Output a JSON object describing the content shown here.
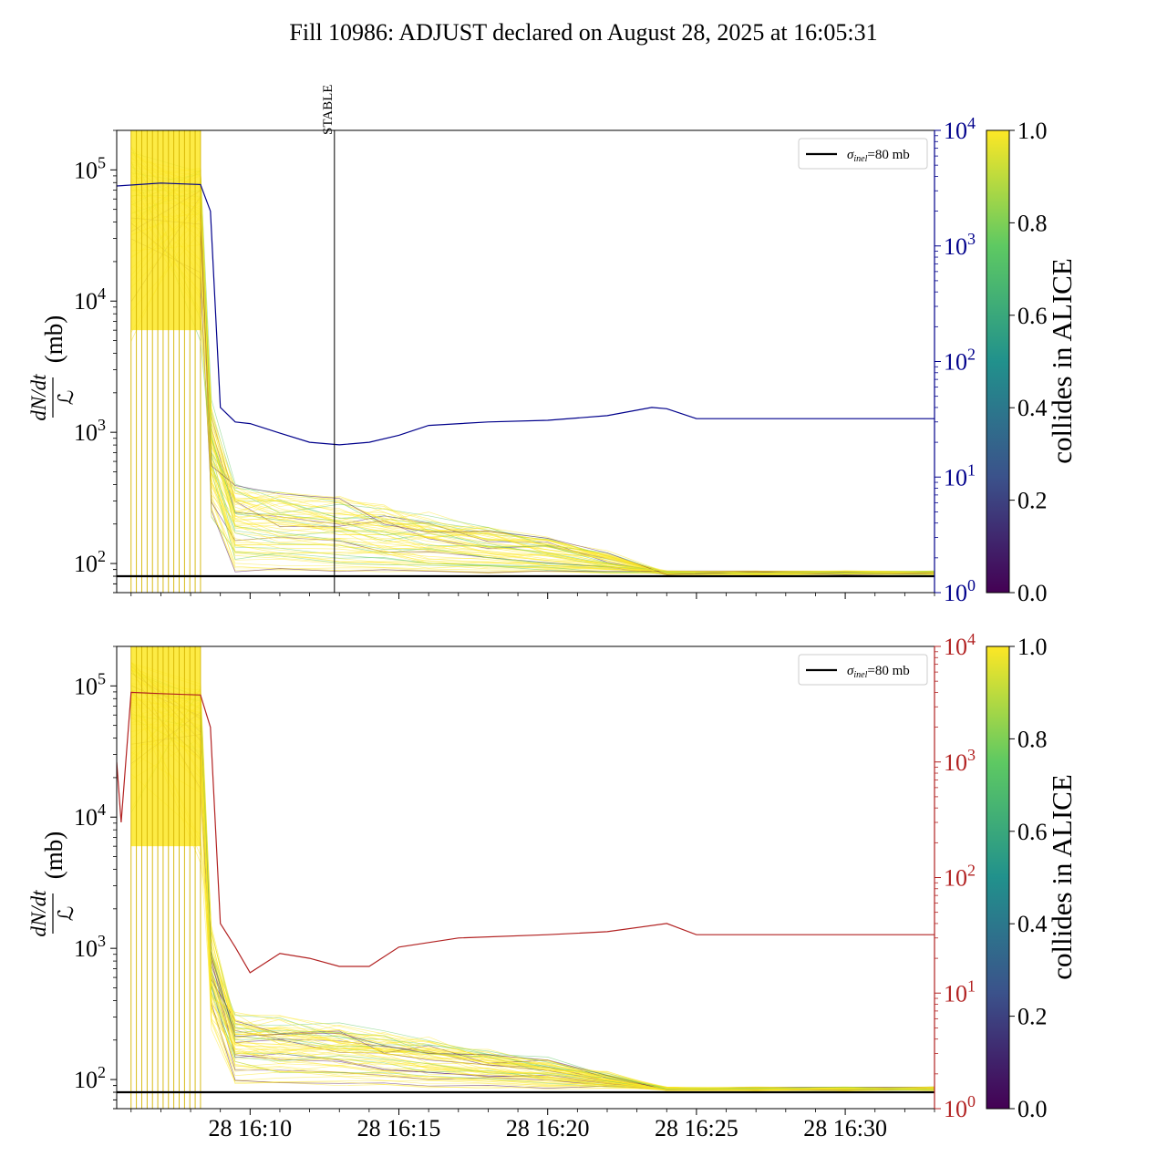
{
  "figure": {
    "title": "Fill 10986: ADJUST declared on August 28, 2025 at 16:05:31"
  },
  "colors": {
    "top_right_axis": "#00008b",
    "bottom_right_axis": "#b22222",
    "reference_line": "#000000",
    "colormap": [
      "#440154",
      "#3b528b",
      "#21918c",
      "#5ec962",
      "#fde725"
    ]
  },
  "chart_data": [
    {
      "type": "line",
      "panel": "top",
      "ylabel_frac_num": "dN/dt",
      "ylabel_frac_den": "ℒ",
      "ylabel_unit": "(mb)",
      "yscale": "log",
      "ylim": [
        60,
        200000
      ],
      "yticks": [
        {
          "base": "10",
          "exp": "2",
          "value": 100
        },
        {
          "base": "10",
          "exp": "3",
          "value": 1000
        },
        {
          "base": "10",
          "exp": "4",
          "value": 10000
        },
        {
          "base": "10",
          "exp": "5",
          "value": 100000
        }
      ],
      "x_minutes_range": [
        16.083,
        16.55
      ],
      "xtick_labels": [],
      "annotation": {
        "text": "STABLE",
        "x_time": "16:12:50"
      },
      "legend": {
        "text_sym": "σ",
        "text_sub": "inel",
        "text_rest": "=80 mb",
        "placement": "upper right"
      },
      "reference_line": {
        "value": 80
      },
      "right_axis": {
        "yscale": "log",
        "ylim": [
          1,
          10000
        ],
        "yticks": [
          {
            "base": "10",
            "exp": "0"
          },
          {
            "base": "10",
            "exp": "1"
          },
          {
            "base": "10",
            "exp": "2"
          },
          {
            "base": "10",
            "exp": "3"
          },
          {
            "base": "10",
            "exp": "4"
          }
        ],
        "series": [
          {
            "x": [
              "16:05:31",
              "16:07:00",
              "16:08:20",
              "16:08:40",
              "16:09:00",
              "16:09:30",
              "16:10:00",
              "16:11:00",
              "16:12:00",
              "16:13:00",
              "16:14:00",
              "16:15:00",
              "16:16:00",
              "16:18:00",
              "16:20:00",
              "16:22:00",
              "16:23:30",
              "16:24:00",
              "16:25:00",
              "16:27:00",
              "16:30:00",
              "16:33:00"
            ],
            "y": [
              3300,
              3500,
              3400,
              2000,
              40,
              30,
              29,
              24,
              20,
              19,
              20,
              23,
              28,
              30,
              31,
              34,
              40,
              39,
              32,
              32,
              32,
              32
            ]
          }
        ]
      },
      "colorbar": {
        "label": "collides in ALICE",
        "ticks": [
          "0.0",
          "0.2",
          "0.4",
          "0.6",
          "0.8",
          "1.0"
        ]
      }
    },
    {
      "type": "line",
      "panel": "bottom",
      "ylabel_frac_num": "dN/dt",
      "ylabel_frac_den": "ℒ",
      "ylabel_unit": "(mb)",
      "yscale": "log",
      "ylim": [
        60,
        200000
      ],
      "yticks": [
        {
          "base": "10",
          "exp": "2",
          "value": 100
        },
        {
          "base": "10",
          "exp": "3",
          "value": 1000
        },
        {
          "base": "10",
          "exp": "4",
          "value": 10000
        },
        {
          "base": "10",
          "exp": "5",
          "value": 100000
        }
      ],
      "xtick_labels": [
        "28 16:10",
        "28 16:15",
        "28 16:20",
        "28 16:25",
        "28 16:30"
      ],
      "legend": {
        "text_sym": "σ",
        "text_sub": "inel",
        "text_rest": "=80 mb",
        "placement": "upper right"
      },
      "reference_line": {
        "value": 80
      },
      "right_axis": {
        "yscale": "log",
        "ylim": [
          1,
          10000
        ],
        "yticks": [
          {
            "base": "10",
            "exp": "0"
          },
          {
            "base": "10",
            "exp": "1"
          },
          {
            "base": "10",
            "exp": "2"
          },
          {
            "base": "10",
            "exp": "3"
          },
          {
            "base": "10",
            "exp": "4"
          }
        ],
        "series": [
          {
            "x": [
              "16:05:31",
              "16:05:40",
              "16:06:00",
              "16:07:00",
              "16:08:20",
              "16:08:40",
              "16:09:00",
              "16:09:30",
              "16:10:00",
              "16:11:00",
              "16:12:00",
              "16:13:00",
              "16:14:00",
              "16:15:00",
              "16:17:00",
              "16:20:00",
              "16:22:00",
              "16:24:00",
              "16:25:00",
              "16:28:00",
              "16:33:00"
            ],
            "y": [
              1000,
              300,
              4000,
              3900,
              3800,
              2000,
              40,
              25,
              15,
              22,
              20,
              17,
              17,
              25,
              30,
              32,
              34,
              40,
              32,
              32,
              32
            ]
          }
        ]
      },
      "colorbar": {
        "label": "collides in ALICE",
        "ticks": [
          "0.0",
          "0.2",
          "0.4",
          "0.6",
          "0.8",
          "1.0"
        ]
      }
    }
  ]
}
